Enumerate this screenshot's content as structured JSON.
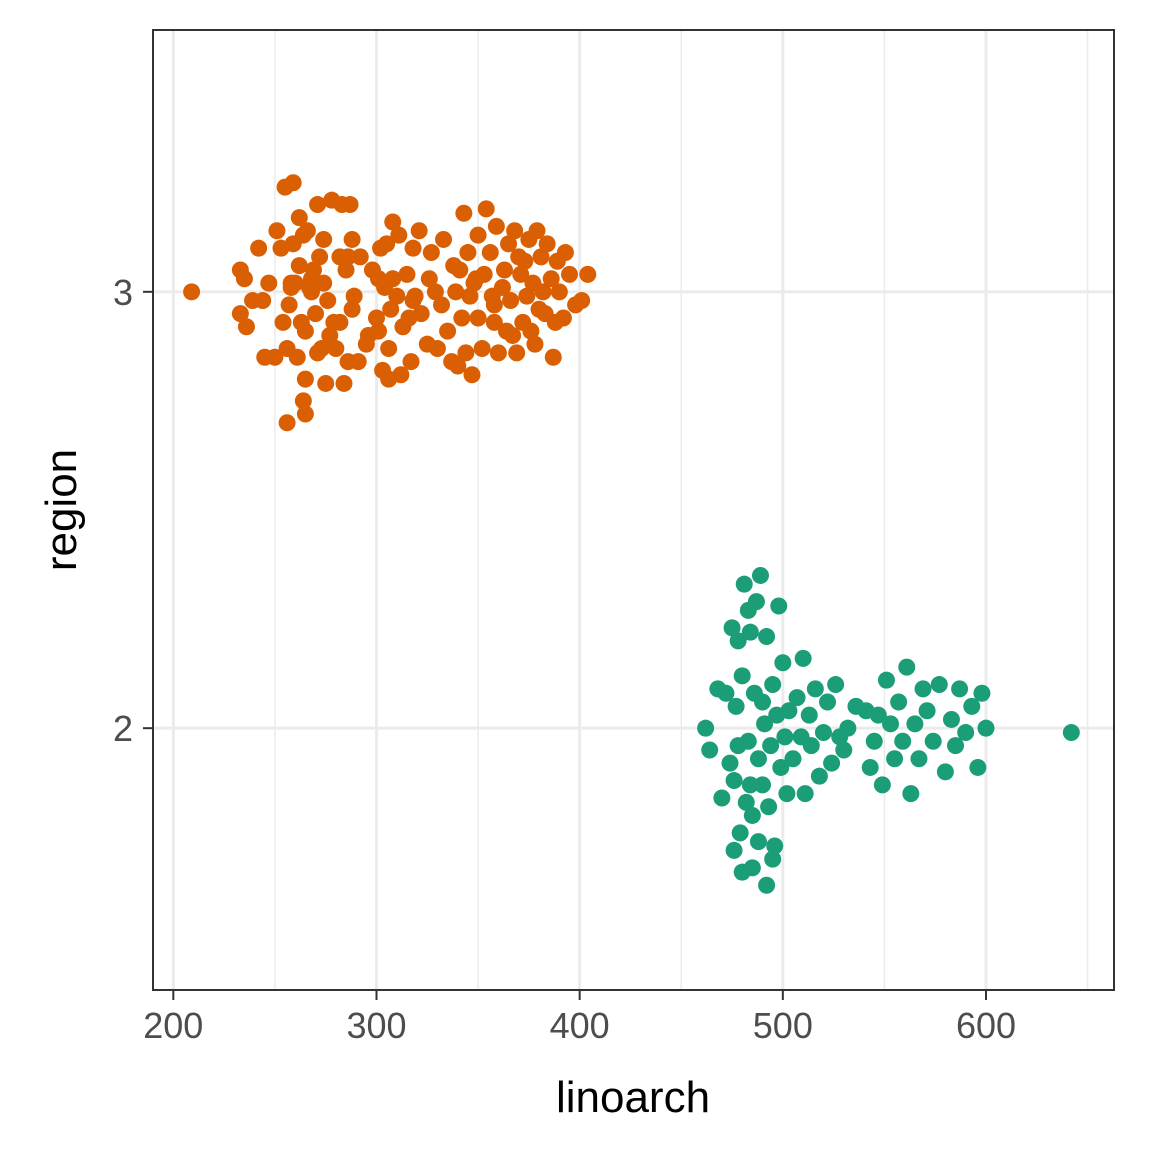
{
  "chart_data": {
    "type": "scatter",
    "subtype": "beeswarm",
    "title": "",
    "xlabel": "linoarch",
    "ylabel": "region",
    "xlim": [
      190,
      663
    ],
    "ylim": [
      1.4,
      3.6
    ],
    "x_ticks": [
      200,
      300,
      400,
      500,
      600
    ],
    "x_minor_ticks": [
      250,
      350,
      450,
      550,
      650
    ],
    "y_ticks": [
      2,
      3
    ],
    "grid": true,
    "legend": "none",
    "series": [
      {
        "group": 3,
        "color": "#D95F02",
        "points": [
          [
            209,
            3.0
          ],
          [
            233,
            3.05
          ],
          [
            233,
            2.95
          ],
          [
            235,
            3.03
          ],
          [
            236,
            2.92
          ],
          [
            239,
            2.98
          ],
          [
            242,
            3.1
          ],
          [
            244,
            2.98
          ],
          [
            245,
            2.85
          ],
          [
            247,
            3.02
          ],
          [
            250,
            2.85
          ],
          [
            251,
            3.14
          ],
          [
            253,
            3.1
          ],
          [
            254,
            2.93
          ],
          [
            255,
            3.24
          ],
          [
            256,
            2.87
          ],
          [
            256,
            2.7
          ],
          [
            257,
            2.97
          ],
          [
            258,
            3.01
          ],
          [
            259,
            3.11
          ],
          [
            259,
            3.25
          ],
          [
            260,
            3.02
          ],
          [
            261,
            2.85
          ],
          [
            262,
            3.17
          ],
          [
            263,
            2.93
          ],
          [
            264,
            3.13
          ],
          [
            264,
            2.75
          ],
          [
            265,
            2.8
          ],
          [
            265,
            2.72
          ],
          [
            265,
            2.91
          ],
          [
            267,
            3.01
          ],
          [
            268,
            3.03
          ],
          [
            269,
            3.05
          ],
          [
            270,
            2.95
          ],
          [
            271,
            2.86
          ],
          [
            272,
            3.08
          ],
          [
            273,
            2.87
          ],
          [
            274,
            3.12
          ],
          [
            275,
            2.79
          ],
          [
            276,
            2.98
          ],
          [
            277,
            2.9
          ],
          [
            278,
            3.21
          ],
          [
            279,
            2.93
          ],
          [
            280,
            2.87
          ],
          [
            282,
            2.93
          ],
          [
            282,
            3.08
          ],
          [
            283,
            3.2
          ],
          [
            284,
            2.79
          ],
          [
            285,
            3.05
          ],
          [
            286,
            3.08
          ],
          [
            286,
            2.84
          ],
          [
            287,
            3.2
          ],
          [
            288,
            3.12
          ],
          [
            289,
            2.99
          ],
          [
            291,
            2.84
          ],
          [
            292,
            3.08
          ],
          [
            295,
            2.88
          ],
          [
            298,
            3.05
          ],
          [
            300,
            2.94
          ],
          [
            301,
            3.03
          ],
          [
            301,
            2.91
          ],
          [
            302,
            3.1
          ],
          [
            303,
            2.82
          ],
          [
            304,
            3.01
          ],
          [
            305,
            3.11
          ],
          [
            306,
            2.87
          ],
          [
            306,
            2.8
          ],
          [
            307,
            2.96
          ],
          [
            308,
            3.03
          ],
          [
            310,
            2.99
          ],
          [
            311,
            3.13
          ],
          [
            312,
            2.81
          ],
          [
            313,
            2.92
          ],
          [
            315,
            3.04
          ],
          [
            316,
            2.94
          ],
          [
            317,
            2.84
          ],
          [
            318,
            3.1
          ],
          [
            319,
            2.99
          ],
          [
            321,
            3.14
          ],
          [
            322,
            2.95
          ],
          [
            325,
            2.88
          ],
          [
            327,
            3.09
          ],
          [
            329,
            3.0
          ],
          [
            330,
            2.87
          ],
          [
            332,
            2.97
          ],
          [
            333,
            3.12
          ],
          [
            335,
            2.91
          ],
          [
            337,
            2.84
          ],
          [
            339,
            3.0
          ],
          [
            340,
            2.83
          ],
          [
            341,
            3.05
          ],
          [
            342,
            2.94
          ],
          [
            343,
            3.18
          ],
          [
            344,
            2.86
          ],
          [
            345,
            3.09
          ],
          [
            346,
            2.99
          ],
          [
            347,
            2.81
          ],
          [
            348,
            3.02
          ],
          [
            350,
            2.94
          ],
          [
            350,
            3.13
          ],
          [
            352,
            2.87
          ],
          [
            353,
            3.04
          ],
          [
            354,
            3.19
          ],
          [
            356,
            3.09
          ],
          [
            357,
            2.99
          ],
          [
            358,
            2.93
          ],
          [
            359,
            3.15
          ],
          [
            360,
            2.86
          ],
          [
            362,
            3.01
          ],
          [
            363,
            3.05
          ],
          [
            364,
            2.91
          ],
          [
            365,
            3.11
          ],
          [
            366,
            2.98
          ],
          [
            367,
            2.9
          ],
          [
            368,
            3.14
          ],
          [
            369,
            2.86
          ],
          [
            371,
            3.04
          ],
          [
            372,
            2.93
          ],
          [
            373,
            3.07
          ],
          [
            374,
            2.99
          ],
          [
            375,
            3.12
          ],
          [
            376,
            2.91
          ],
          [
            377,
            3.02
          ],
          [
            378,
            2.88
          ],
          [
            379,
            3.14
          ],
          [
            381,
            3.08
          ],
          [
            382,
            3.0
          ],
          [
            383,
            2.95
          ],
          [
            384,
            3.11
          ],
          [
            386,
            3.03
          ],
          [
            387,
            2.85
          ],
          [
            388,
            2.93
          ],
          [
            389,
            3.07
          ],
          [
            390,
            3.0
          ],
          [
            392,
            2.94
          ],
          [
            393,
            3.09
          ],
          [
            395,
            3.04
          ],
          [
            398,
            2.97
          ],
          [
            401,
            2.98
          ],
          [
            404,
            3.04
          ],
          [
            268,
            3.0
          ],
          [
            262,
            3.06
          ],
          [
            258,
            3.02
          ],
          [
            271,
            3.2
          ],
          [
            266,
            3.14
          ],
          [
            274,
            3.02
          ],
          [
            288,
            2.96
          ],
          [
            296,
            2.9
          ],
          [
            308,
            3.16
          ],
          [
            318,
            2.98
          ],
          [
            326,
            3.03
          ],
          [
            338,
            3.06
          ],
          [
            349,
            3.03
          ],
          [
            358,
            2.97
          ],
          [
            370,
            3.08
          ],
          [
            380,
            2.96
          ]
        ]
      },
      {
        "group": 2,
        "color": "#1B9E77",
        "points": [
          [
            462,
            2.0
          ],
          [
            464,
            1.95
          ],
          [
            468,
            2.09
          ],
          [
            470,
            1.84
          ],
          [
            472,
            2.08
          ],
          [
            474,
            1.92
          ],
          [
            475,
            2.23
          ],
          [
            476,
            1.88
          ],
          [
            477,
            2.05
          ],
          [
            478,
            1.96
          ],
          [
            479,
            1.76
          ],
          [
            480,
            2.12
          ],
          [
            481,
            2.33
          ],
          [
            482,
            1.83
          ],
          [
            483,
            1.97
          ],
          [
            484,
            2.22
          ],
          [
            485,
            1.8
          ],
          [
            486,
            2.08
          ],
          [
            487,
            2.29
          ],
          [
            488,
            1.93
          ],
          [
            489,
            2.35
          ],
          [
            490,
            1.87
          ],
          [
            491,
            2.01
          ],
          [
            492,
            2.21
          ],
          [
            493,
            1.82
          ],
          [
            494,
            1.96
          ],
          [
            495,
            2.1
          ],
          [
            496,
            1.73
          ],
          [
            497,
            2.03
          ],
          [
            498,
            2.28
          ],
          [
            499,
            1.91
          ],
          [
            500,
            2.15
          ],
          [
            501,
            1.98
          ],
          [
            502,
            1.85
          ],
          [
            503,
            2.04
          ],
          [
            505,
            1.93
          ],
          [
            507,
            2.07
          ],
          [
            509,
            1.98
          ],
          [
            510,
            2.16
          ],
          [
            511,
            1.85
          ],
          [
            513,
            2.03
          ],
          [
            514,
            1.96
          ],
          [
            516,
            2.09
          ],
          [
            518,
            1.89
          ],
          [
            520,
            1.99
          ],
          [
            522,
            2.06
          ],
          [
            524,
            1.92
          ],
          [
            526,
            2.1
          ],
          [
            528,
            1.98
          ],
          [
            530,
            1.95
          ],
          [
            532,
            2.0
          ],
          [
            536,
            2.05
          ],
          [
            541,
            2.04
          ],
          [
            543,
            1.91
          ],
          [
            545,
            1.97
          ],
          [
            547,
            2.03
          ],
          [
            549,
            1.87
          ],
          [
            551,
            2.11
          ],
          [
            553,
            2.01
          ],
          [
            555,
            1.93
          ],
          [
            557,
            2.06
          ],
          [
            559,
            1.97
          ],
          [
            561,
            2.14
          ],
          [
            563,
            1.85
          ],
          [
            565,
            2.01
          ],
          [
            567,
            1.93
          ],
          [
            569,
            2.09
          ],
          [
            571,
            2.04
          ],
          [
            574,
            1.97
          ],
          [
            577,
            2.1
          ],
          [
            580,
            1.9
          ],
          [
            583,
            2.02
          ],
          [
            585,
            1.96
          ],
          [
            587,
            2.09
          ],
          [
            590,
            1.99
          ],
          [
            593,
            2.05
          ],
          [
            596,
            1.91
          ],
          [
            598,
            2.08
          ],
          [
            600,
            2.0
          ],
          [
            642,
            1.99
          ],
          [
            478,
            2.2
          ],
          [
            485,
            1.68
          ],
          [
            492,
            1.64
          ],
          [
            480,
            1.67
          ],
          [
            488,
            1.74
          ],
          [
            495,
            1.7
          ],
          [
            476,
            1.72
          ],
          [
            483,
            2.27
          ],
          [
            490,
            2.06
          ],
          [
            484,
            1.87
          ]
        ]
      }
    ]
  }
}
